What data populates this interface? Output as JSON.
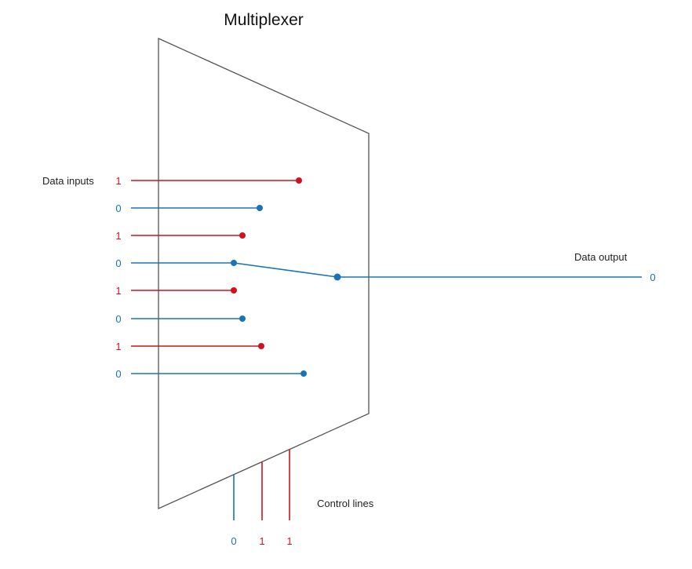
{
  "title": "Multiplexer",
  "labels": {
    "data_inputs": "Data inputs",
    "data_output": "Data output",
    "control_lines": "Control lines"
  },
  "colors": {
    "high": "#d0121e",
    "low": "#1a73b5",
    "outline": "#555555"
  },
  "inputs": [
    {
      "value": "1"
    },
    {
      "value": "0"
    },
    {
      "value": "1"
    },
    {
      "value": "0"
    },
    {
      "value": "1"
    },
    {
      "value": "0"
    },
    {
      "value": "1"
    },
    {
      "value": "0"
    }
  ],
  "selected_input": 3,
  "controls": [
    {
      "value": "0"
    },
    {
      "value": "1"
    },
    {
      "value": "1"
    }
  ],
  "output": {
    "value": "0"
  }
}
